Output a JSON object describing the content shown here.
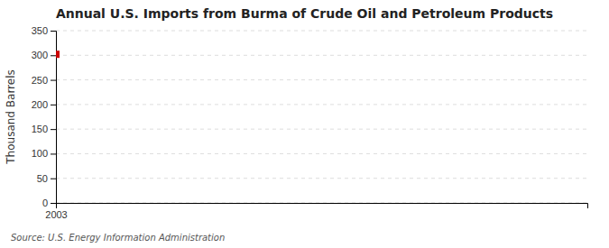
{
  "chart_data": {
    "type": "scatter",
    "title": "Annual U.S. Imports from Burma of Crude Oil and Petroleum Products",
    "ylabel": "Thousand Barrels",
    "annotations": [
      "Source: U.S. Energy Information Administration"
    ],
    "x": [
      2003
    ],
    "values": [
      302
    ],
    "color": "#cc0000",
    "marker": "square",
    "xlim": [
      2003,
      2004.5
    ],
    "ylim": [
      0,
      350
    ],
    "xticks": [
      2003
    ],
    "yticks": [
      0,
      50,
      100,
      150,
      200,
      250,
      300,
      350
    ],
    "grid": true
  }
}
